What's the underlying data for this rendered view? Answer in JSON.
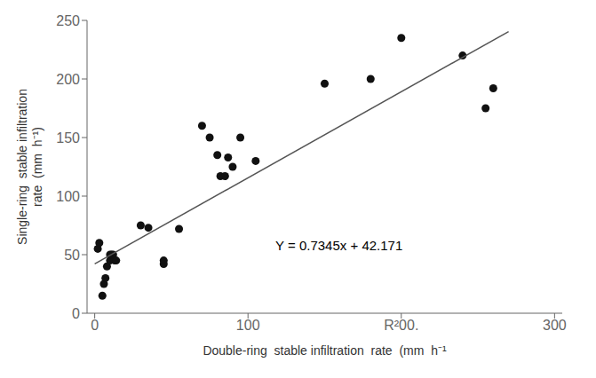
{
  "chart_data": {
    "type": "scatter",
    "xlabel": "Double-ring  stable infiltration  rate  (mm  h⁻¹",
    "ylabel": "Single-ring  stable infiltration\nrate  (mm  h⁻¹)",
    "xlim": [
      -5,
      305
    ],
    "ylim": [
      0,
      250
    ],
    "xticks": [
      0,
      100,
      {
        "value": 200,
        "label": "R²00."
      },
      300
    ],
    "yticks": [
      0,
      50,
      100,
      150,
      200,
      250
    ],
    "grid": false,
    "series": [
      {
        "type": "scatter",
        "color": "#111111",
        "x": [
          2,
          3,
          5,
          6,
          7,
          8,
          10,
          10,
          11,
          12,
          13,
          14,
          30,
          35,
          45,
          45,
          55,
          70,
          75,
          80,
          82,
          85,
          87,
          90,
          95,
          105,
          150,
          180,
          200,
          240,
          255,
          260
        ],
        "values": [
          55,
          60,
          15,
          25,
          30,
          40,
          45,
          50,
          50,
          50,
          45,
          45,
          75,
          73,
          42,
          45,
          72,
          160,
          150,
          135,
          117,
          117,
          133,
          125,
          150,
          130,
          196,
          200,
          235,
          220,
          175,
          192
        ]
      },
      {
        "type": "line",
        "color": "#555555",
        "x": [
          0,
          270
        ],
        "values": [
          42.171,
          240.486
        ]
      }
    ],
    "annotations": [
      {
        "text": "Y = 0.7345x + 42.171",
        "x": 115,
        "y": 58
      }
    ]
  }
}
